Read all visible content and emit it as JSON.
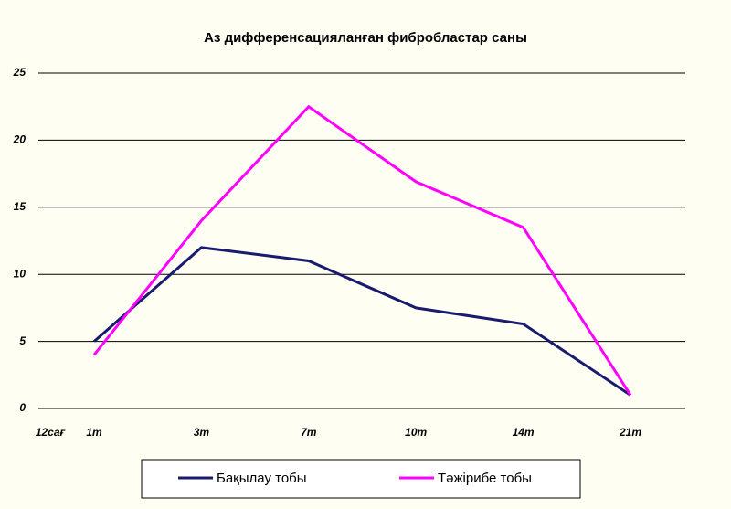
{
  "chart_data": {
    "type": "line",
    "title": "Аз дифференсацияланған фибробластар саны",
    "categories": [
      "12сағ",
      "1т",
      "3т",
      "7т",
      "10т",
      "14т",
      "21т"
    ],
    "series": [
      {
        "name": "Бақылау тобы",
        "color": "#1a1a6e",
        "values": [
          null,
          5,
          12,
          11,
          7.5,
          6.3,
          1
        ]
      },
      {
        "name": "Тәжірибе тобы",
        "color": "#ff00ff",
        "values": [
          null,
          4,
          14,
          22.5,
          16.9,
          13.5,
          1
        ]
      }
    ],
    "ylim": [
      0,
      25
    ],
    "yticks": [
      0,
      5,
      10,
      15,
      20,
      25
    ],
    "grid": true
  }
}
